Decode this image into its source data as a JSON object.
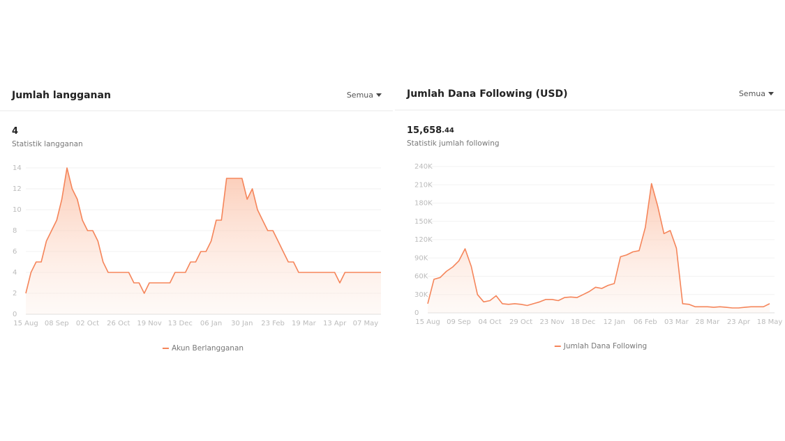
{
  "chart_data": [
    {
      "type": "line",
      "title": "Jumlah langganan",
      "filter": "Semua",
      "stat": "4",
      "stat_label": "Statistik langganan",
      "categories": [
        "15 Aug",
        null,
        null,
        null,
        null,
        null,
        "08 Sep",
        null,
        null,
        null,
        null,
        null,
        "02 Oct",
        null,
        null,
        null,
        null,
        null,
        "26 Oct",
        null,
        null,
        null,
        null,
        null,
        "19 Nov",
        null,
        null,
        null,
        null,
        null,
        "13 Dec",
        null,
        null,
        null,
        null,
        null,
        "06 Jan",
        null,
        null,
        null,
        null,
        null,
        "30 Jan",
        null,
        null,
        null,
        null,
        null,
        "23 Feb",
        null,
        null,
        null,
        null,
        null,
        "19 Mar",
        null,
        null,
        null,
        null,
        null,
        "13 Apr",
        null,
        null,
        null,
        null,
        null,
        "07 May",
        null,
        null,
        null
      ],
      "series": [
        {
          "name": "Akun Berlangganan",
          "color": "#f5855a",
          "values": [
            2,
            4,
            5,
            5,
            7,
            8,
            9,
            11,
            14,
            12,
            11,
            9,
            8,
            8,
            7,
            5,
            4,
            4,
            4,
            4,
            4,
            3,
            3,
            2,
            3,
            3,
            3,
            3,
            3,
            4,
            4,
            4,
            5,
            5,
            6,
            6,
            7,
            9,
            9,
            13,
            13,
            13,
            13,
            11,
            12,
            10,
            9,
            8,
            8,
            7,
            6,
            5,
            5,
            4,
            4,
            4,
            4,
            4,
            4,
            4,
            4,
            3,
            4,
            4,
            4,
            4,
            4,
            4,
            4,
            4
          ]
        }
      ],
      "ylim": [
        0,
        14
      ],
      "yticks": [
        0,
        2,
        4,
        6,
        8,
        10,
        12,
        14
      ],
      "grid": true
    },
    {
      "type": "line",
      "title": "Jumlah Dana Following (USD)",
      "filter": "Semua",
      "stat": "15,658",
      "stat_fraction": ".44",
      "stat_label": "Statistik jumlah following",
      "categories": [
        "15 Aug",
        null,
        null,
        null,
        null,
        "09 Sep",
        null,
        null,
        null,
        null,
        "04 Oct",
        null,
        null,
        null,
        null,
        "29 Oct",
        null,
        null,
        null,
        null,
        "23 Nov",
        null,
        null,
        null,
        null,
        "18 Dec",
        null,
        null,
        null,
        null,
        "12 Jan",
        null,
        null,
        null,
        null,
        "06 Feb",
        null,
        null,
        null,
        null,
        "03 Mar",
        null,
        null,
        null,
        null,
        "28 Mar",
        null,
        null,
        null,
        null,
        "23 Apr",
        null,
        null,
        null,
        null,
        "18 May"
      ],
      "series": [
        {
          "name": "Jumlah Dana Following",
          "color": "#f5855a",
          "values": [
            15000,
            55000,
            58000,
            68000,
            75000,
            85000,
            105000,
            76000,
            30000,
            18000,
            20000,
            28000,
            15000,
            14000,
            15000,
            14000,
            12000,
            15000,
            18000,
            22000,
            22000,
            20000,
            25000,
            26000,
            25000,
            30000,
            35000,
            42000,
            40000,
            45000,
            48000,
            92000,
            95000,
            100000,
            102000,
            140000,
            212000,
            175000,
            130000,
            135000,
            106000,
            15000,
            14000,
            10000,
            10000,
            10000,
            9000,
            10000,
            9000,
            8000,
            8000,
            9000,
            10000,
            10000,
            10000,
            15000
          ]
        }
      ],
      "ylim": [
        0,
        240000
      ],
      "yticks": [
        0,
        {
          "value": 30000,
          "label": "30K"
        },
        {
          "value": 60000,
          "label": "60K"
        },
        {
          "value": 90000,
          "label": "90K"
        },
        {
          "value": 120000,
          "label": "120K"
        },
        {
          "value": 150000,
          "label": "150K"
        },
        {
          "value": 180000,
          "label": "180K"
        },
        {
          "value": 210000,
          "label": "210K"
        },
        {
          "value": 240000,
          "label": "240K"
        }
      ],
      "grid": true
    }
  ]
}
